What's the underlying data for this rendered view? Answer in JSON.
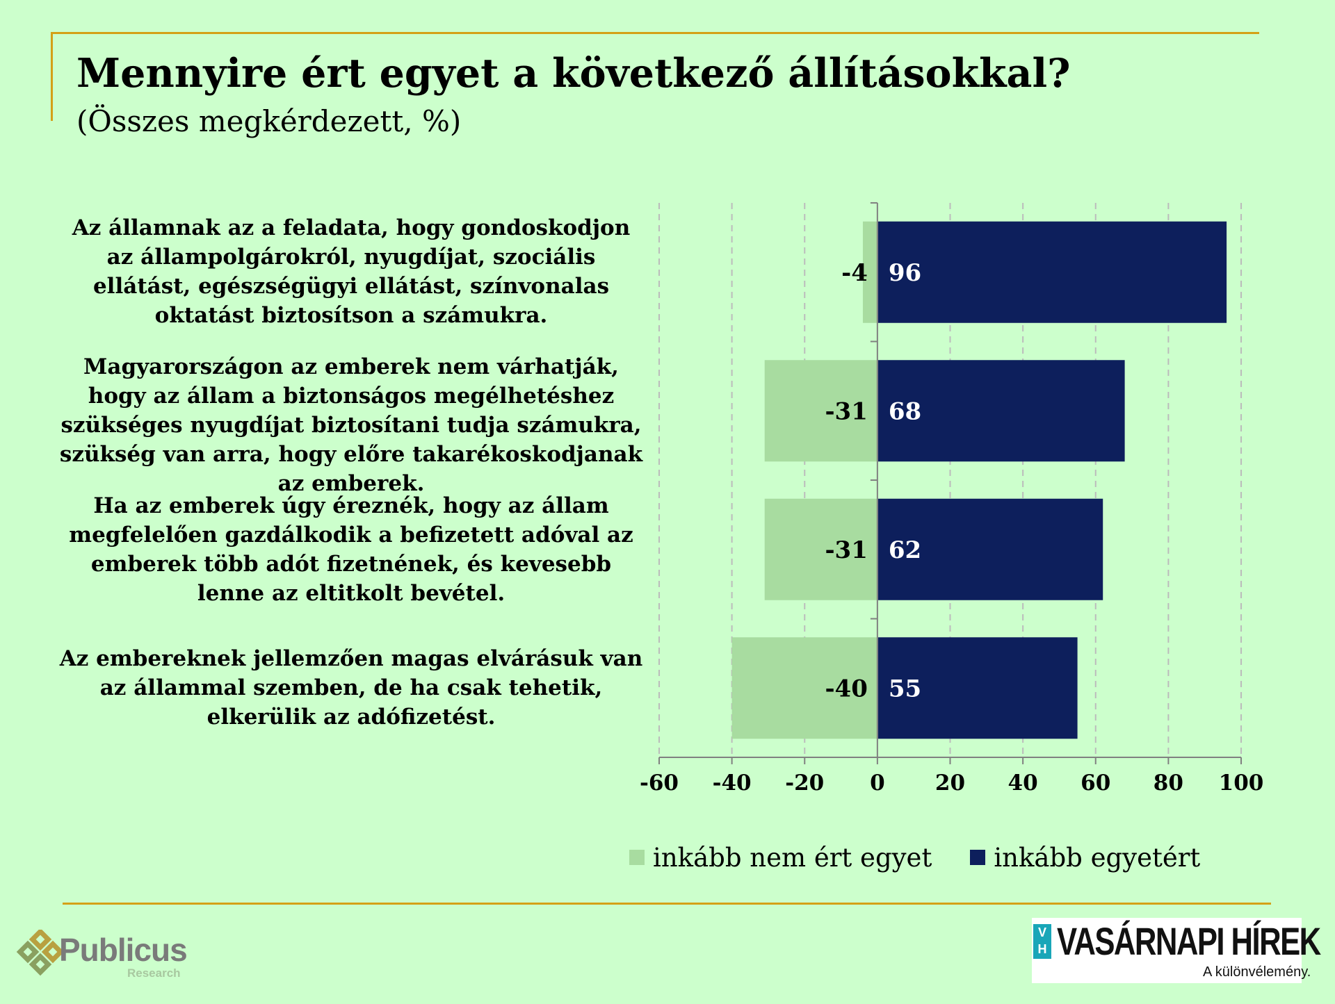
{
  "title": "Mennyire ért egyet a következő állításokkal?",
  "subtitle": "(Összes megkérdezett, %)",
  "colors": {
    "background": "#ccffcc",
    "disagree": "#a8dca0",
    "agree": "#0d1f5c",
    "rule": "#d4a017",
    "grid": "#bbbbbb"
  },
  "chart_data": {
    "type": "bar",
    "orientation": "horizontal",
    "stacked": "diverging",
    "categories": [
      "Az államnak az a feladata, hogy gondoskodjon az állampolgárokról, nyugdíjat, szociális ellátást, egészségügyi ellátást, színvonalas oktatást biztosítson a számukra.",
      "Magyarországon az emberek nem várhatják, hogy az állam a biztonságos megélhetéshez szükséges nyugdíjat biztosítani tudja számukra, szükség van arra, hogy előre takarékoskodjanak az emberek.",
      "Ha az emberek úgy éreznék, hogy az állam megfelelően gazdálkodik a befizetett adóval az emberek több adót fizetnének, és kevesebb lenne az eltitkolt bevétel.",
      "Az embereknek jellemzően magas elvárásuk van az állammal szemben, de ha csak tehetik, elkerülik az adófizetést."
    ],
    "series": [
      {
        "name": "inkább nem ért egyet",
        "values": [
          -4,
          -31,
          -31,
          -40
        ],
        "labels": [
          "-4",
          "-31",
          "-31",
          "-40"
        ]
      },
      {
        "name": "inkább egyetért",
        "values": [
          96,
          68,
          62,
          55
        ],
        "labels": [
          "96",
          "68",
          "62",
          "55"
        ]
      }
    ],
    "xlim": [
      -60,
      100
    ],
    "xticks": [
      "-60",
      "-40",
      "-20",
      "0",
      "20",
      "40",
      "60",
      "80",
      "100"
    ],
    "grid": "vertical dashed",
    "legend": "bottom"
  },
  "logos": {
    "publicus": {
      "name": "Publicus",
      "sub": "Research"
    },
    "vh": {
      "badge": "V H",
      "name": "VASÁRNAPI HÍREK",
      "tagline": "A különvélemény."
    }
  }
}
